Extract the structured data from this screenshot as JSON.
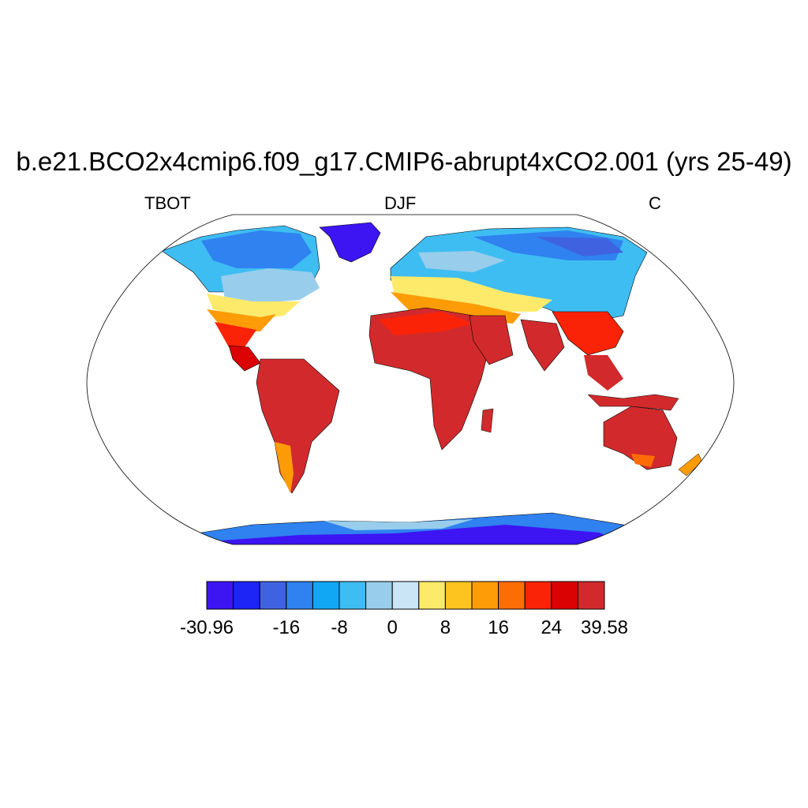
{
  "title": "b.e21.BCO2x4cmip6.f09_g17.CMIP6-abrupt4xCO2.001 (yrs 25-49)",
  "left_label": "TBOT",
  "center_label": "DJF",
  "right_label": "C",
  "colorbar": {
    "colors": [
      "#3d15f2",
      "#1c24f6",
      "#3f63e0",
      "#2f82f0",
      "#11a7f4",
      "#3ebdf2",
      "#98cdec",
      "#c9e5f6",
      "#fdea6a",
      "#fdc31f",
      "#fd9c07",
      "#fd6d05",
      "#fb2307",
      "#da0203",
      "#d22a2c"
    ],
    "tick_labels": [
      "-30.96",
      "-16",
      "-8",
      "0",
      "8",
      "16",
      "24",
      "39.58"
    ]
  },
  "map": {
    "projection": "Robinson",
    "variable": "TBOT",
    "season": "DJF",
    "units": "C"
  }
}
